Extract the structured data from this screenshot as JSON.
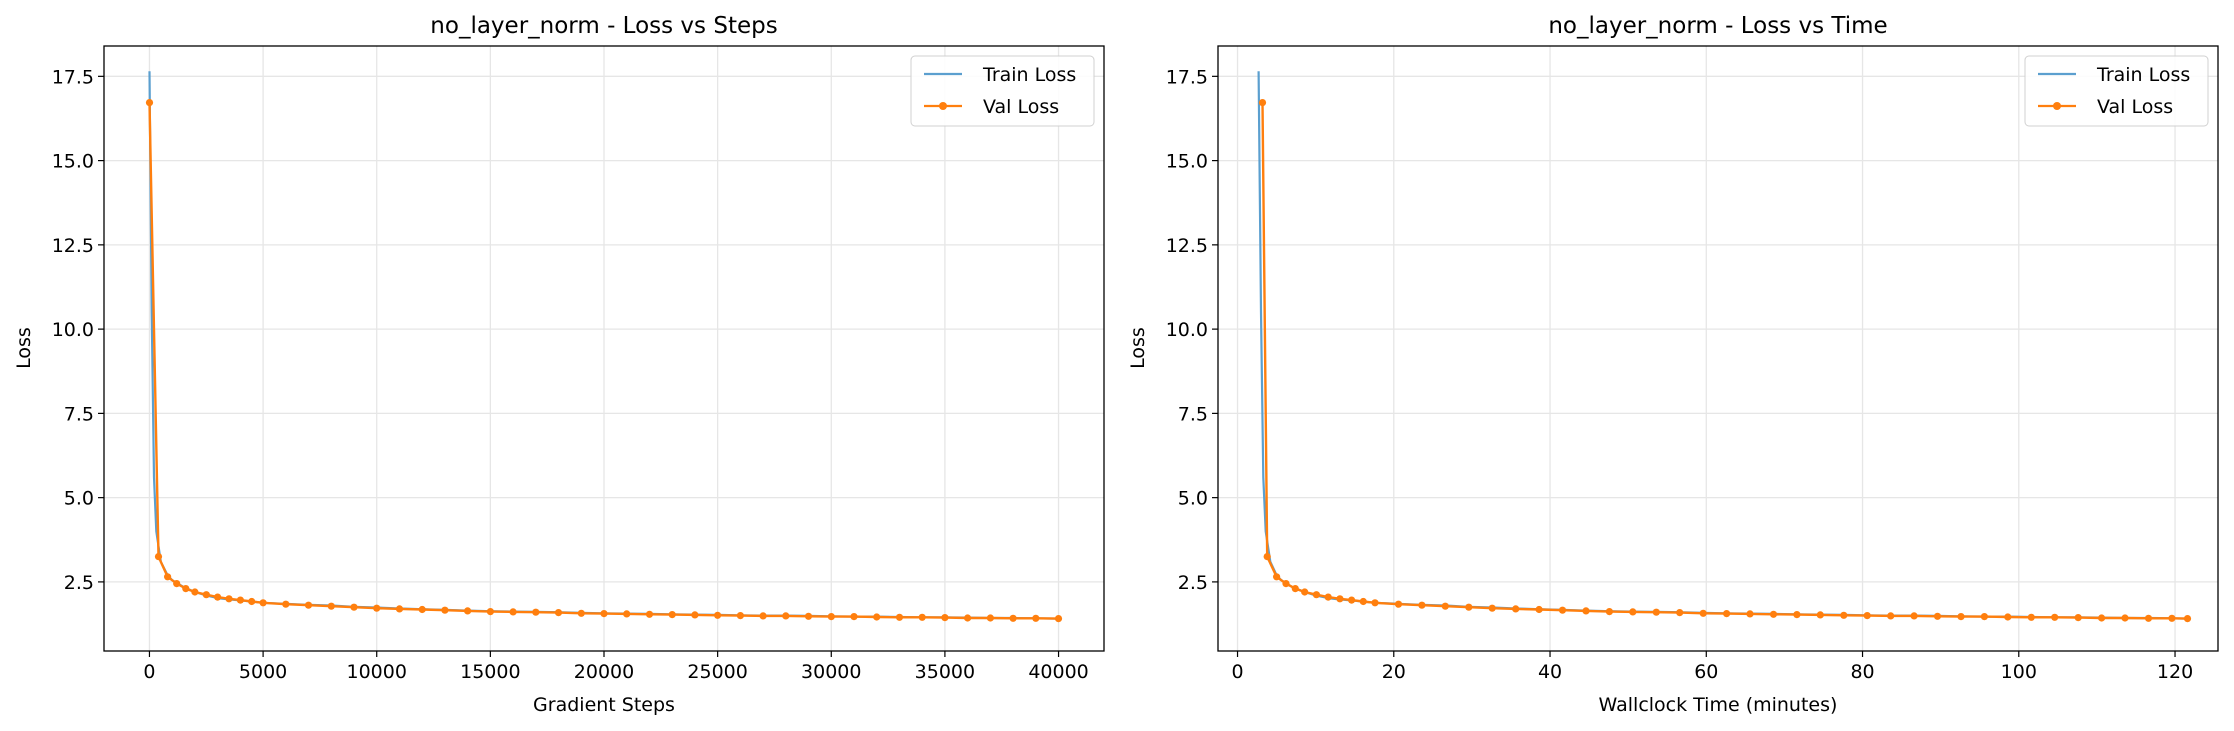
{
  "colors": {
    "train": "#5b9fcf",
    "val": "#ff7f0e",
    "grid": "#e6e6e6"
  },
  "chart_data": [
    {
      "type": "line",
      "title": "no_layer_norm - Loss vs Steps",
      "xlabel": "Gradient Steps",
      "ylabel": "Loss",
      "xlim": [
        -2000,
        42000
      ],
      "ylim": [
        0.45,
        18.4
      ],
      "xticks": [
        0,
        5000,
        10000,
        15000,
        20000,
        25000,
        30000,
        35000,
        40000
      ],
      "xtick_labels": [
        "0",
        "5000",
        "10000",
        "15000",
        "20000",
        "25000",
        "30000",
        "35000",
        "40000"
      ],
      "yticks": [
        2.5,
        5.0,
        7.5,
        10.0,
        12.5,
        15.0,
        17.5
      ],
      "ytick_labels": [
        "2.5",
        "5.0",
        "7.5",
        "10.0",
        "12.5",
        "15.0",
        "17.5"
      ],
      "grid": true,
      "legend": "top-right",
      "series": [
        {
          "name": "Train Loss",
          "x": [
            0,
            100,
            200,
            300,
            500,
            800,
            1000,
            1500,
            2000,
            2500,
            3000,
            3500,
            4000,
            4500,
            5000,
            6000,
            7000,
            8000,
            9000,
            10000,
            11000,
            12000,
            13000,
            14000,
            15000,
            16000,
            17000,
            18000,
            19000,
            20000,
            21000,
            22000,
            23000,
            24000,
            25000,
            26000,
            27000,
            28000,
            29000,
            30000,
            31000,
            32000,
            33000,
            34000,
            35000,
            36000,
            37000,
            38000,
            39000,
            40000
          ],
          "values": [
            17.65,
            10.5,
            5.6,
            4.0,
            3.1,
            2.7,
            2.55,
            2.35,
            2.2,
            2.1,
            2.02,
            1.98,
            1.95,
            1.92,
            1.88,
            1.85,
            1.82,
            1.8,
            1.76,
            1.74,
            1.71,
            1.69,
            1.67,
            1.65,
            1.63,
            1.62,
            1.61,
            1.6,
            1.58,
            1.57,
            1.56,
            1.55,
            1.54,
            1.53,
            1.52,
            1.51,
            1.5,
            1.5,
            1.49,
            1.48,
            1.47,
            1.47,
            1.46,
            1.45,
            1.45,
            1.44,
            1.43,
            1.43,
            1.42,
            1.41
          ]
        },
        {
          "name": "Val Loss",
          "x": [
            0,
            400,
            800,
            1200,
            1600,
            2000,
            2500,
            3000,
            3500,
            4000,
            4500,
            5000,
            6000,
            7000,
            8000,
            9000,
            10000,
            11000,
            12000,
            13000,
            14000,
            15000,
            16000,
            17000,
            18000,
            19000,
            20000,
            21000,
            22000,
            23000,
            24000,
            25000,
            26000,
            27000,
            28000,
            29000,
            30000,
            31000,
            32000,
            33000,
            34000,
            35000,
            36000,
            37000,
            38000,
            39000,
            40000
          ],
          "values": [
            16.72,
            3.25,
            2.65,
            2.45,
            2.3,
            2.2,
            2.12,
            2.05,
            2.0,
            1.96,
            1.92,
            1.88,
            1.84,
            1.81,
            1.78,
            1.75,
            1.72,
            1.7,
            1.68,
            1.66,
            1.64,
            1.62,
            1.61,
            1.6,
            1.59,
            1.57,
            1.56,
            1.55,
            1.54,
            1.53,
            1.52,
            1.51,
            1.5,
            1.49,
            1.49,
            1.48,
            1.47,
            1.47,
            1.46,
            1.45,
            1.45,
            1.44,
            1.43,
            1.43,
            1.42,
            1.42,
            1.41
          ]
        }
      ]
    },
    {
      "type": "line",
      "title": "no_layer_norm - Loss vs Time",
      "xlabel": "Wallclock Time (minutes)",
      "ylabel": "Loss",
      "xlim": [
        -2.5,
        125.5
      ],
      "ylim": [
        0.45,
        18.4
      ],
      "xticks": [
        0,
        20,
        40,
        60,
        80,
        100,
        120
      ],
      "xtick_labels": [
        "0",
        "20",
        "40",
        "60",
        "80",
        "100",
        "120"
      ],
      "yticks": [
        2.5,
        5.0,
        7.5,
        10.0,
        12.5,
        15.0,
        17.5
      ],
      "ytick_labels": [
        "2.5",
        "5.0",
        "7.5",
        "10.0",
        "12.5",
        "15.0",
        "17.5"
      ],
      "grid": true,
      "legend": "top-right",
      "series": [
        {
          "name": "Train Loss",
          "x": [
            2.7,
            3.0,
            3.3,
            3.6,
            4.2,
            5.0,
            5.6,
            7.0,
            8.6,
            10.0,
            11.6,
            13.0,
            14.6,
            16.0,
            17.6,
            20.6,
            23.6,
            26.6,
            29.6,
            32.6,
            35.6,
            38.6,
            41.6,
            44.6,
            47.6,
            50.6,
            53.6,
            56.6,
            59.6,
            62.6,
            65.6,
            68.6,
            71.6,
            74.6,
            77.6,
            80.6,
            83.6,
            86.6,
            89.6,
            92.6,
            95.6,
            98.6,
            101.6,
            104.6,
            107.6,
            110.6,
            113.6,
            116.6,
            119.6,
            121.6
          ],
          "values": [
            17.65,
            10.5,
            5.6,
            4.0,
            3.1,
            2.7,
            2.55,
            2.35,
            2.2,
            2.1,
            2.02,
            1.98,
            1.95,
            1.92,
            1.88,
            1.85,
            1.82,
            1.8,
            1.76,
            1.74,
            1.71,
            1.69,
            1.67,
            1.65,
            1.63,
            1.62,
            1.61,
            1.6,
            1.58,
            1.57,
            1.56,
            1.55,
            1.54,
            1.53,
            1.52,
            1.51,
            1.5,
            1.5,
            1.49,
            1.48,
            1.47,
            1.47,
            1.46,
            1.45,
            1.45,
            1.44,
            1.43,
            1.43,
            1.42,
            1.41
          ]
        },
        {
          "name": "Val Loss",
          "x": [
            3.2,
            3.8,
            5.0,
            6.2,
            7.4,
            8.6,
            10.1,
            11.6,
            13.1,
            14.6,
            16.1,
            17.6,
            20.6,
            23.6,
            26.6,
            29.6,
            32.6,
            35.6,
            38.6,
            41.6,
            44.6,
            47.6,
            50.6,
            53.6,
            56.6,
            59.6,
            62.6,
            65.6,
            68.6,
            71.6,
            74.6,
            77.6,
            80.6,
            83.6,
            86.6,
            89.6,
            92.6,
            95.6,
            98.6,
            101.6,
            104.6,
            107.6,
            110.6,
            113.6,
            116.6,
            119.6,
            121.6
          ],
          "values": [
            16.72,
            3.25,
            2.65,
            2.45,
            2.3,
            2.2,
            2.12,
            2.05,
            2.0,
            1.96,
            1.92,
            1.88,
            1.84,
            1.81,
            1.78,
            1.75,
            1.72,
            1.7,
            1.68,
            1.66,
            1.64,
            1.62,
            1.61,
            1.6,
            1.59,
            1.57,
            1.56,
            1.55,
            1.54,
            1.53,
            1.52,
            1.51,
            1.5,
            1.49,
            1.49,
            1.48,
            1.47,
            1.47,
            1.46,
            1.45,
            1.45,
            1.44,
            1.43,
            1.43,
            1.42,
            1.42,
            1.41
          ]
        }
      ]
    }
  ]
}
